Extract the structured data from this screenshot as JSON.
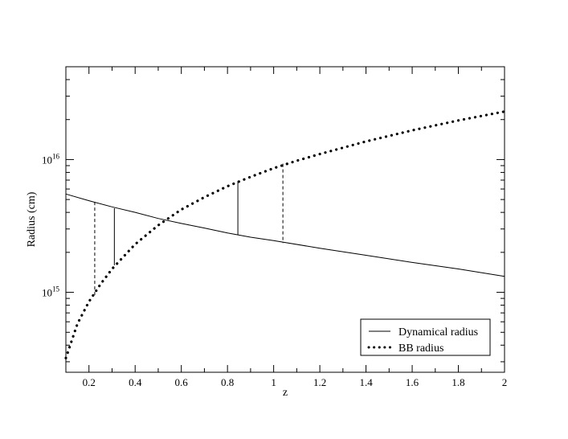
{
  "chart_data": {
    "type": "line",
    "xlabel": "z",
    "ylabel": "Radius (cm)",
    "xlim": [
      0.1,
      2.0
    ],
    "ylim": [
      250000000000000.0,
      5e+16
    ],
    "yscale": "log",
    "x_ticks": [
      0.2,
      0.4,
      0.6,
      0.8,
      1.0,
      1.2,
      1.4,
      1.6,
      1.8,
      2.0
    ],
    "x_tick_labels": [
      "0.2",
      "0.4",
      "0.6",
      "0.8",
      "1",
      "1.2",
      "1.4",
      "1.6",
      "1.8",
      "2"
    ],
    "y_ticks": [
      {
        "value": 1000000000000000.0,
        "base": "10",
        "exponent": "15"
      },
      {
        "value": 1e+16,
        "base": "10",
        "exponent": "16"
      }
    ],
    "grid": false,
    "legend_position": "bottom-right",
    "series": [
      {
        "name": "Dynamical radius",
        "style": "solid",
        "x": [
          0.1,
          0.2,
          0.3,
          0.4,
          0.5,
          0.6,
          0.7,
          0.8,
          0.9,
          1.0,
          1.2,
          1.4,
          1.6,
          1.8,
          2.0
        ],
        "y": [
          5500000000000000.0,
          4900000000000000.0,
          4400000000000000.0,
          4000000000000000.0,
          3600000000000000.0,
          3300000000000000.0,
          3050000000000000.0,
          2800000000000000.0,
          2600000000000000.0,
          2450000000000000.0,
          2150000000000000.0,
          1900000000000000.0,
          1680000000000000.0,
          1500000000000000.0,
          1320000000000000.0
        ]
      },
      {
        "name": "BB radius",
        "style": "dotted",
        "x": [
          0.1,
          0.15,
          0.2,
          0.25,
          0.3,
          0.4,
          0.5,
          0.6,
          0.7,
          0.8,
          0.9,
          1.0,
          1.1,
          1.2,
          1.4,
          1.6,
          1.8,
          2.0
        ],
        "y": [
          320000000000000.0,
          580000000000000.0,
          850000000000000.0,
          1150000000000000.0,
          1500000000000000.0,
          2300000000000000.0,
          3200000000000000.0,
          4200000000000000.0,
          5200000000000000.0,
          6300000000000000.0,
          7400000000000000.0,
          8600000000000000.0,
          9800000000000000.0,
          1.1e+16,
          1.37e+16,
          1.66e+16,
          1.97e+16,
          2.3e+16
        ]
      }
    ],
    "vertical_markers": [
      {
        "x": 0.225,
        "y_top": 4800000000000000.0,
        "y_bottom": 950000000000000.0,
        "style": "dashed"
      },
      {
        "x": 0.31,
        "y_top": 4300000000000000.0,
        "y_bottom": 1600000000000000.0,
        "style": "solid"
      },
      {
        "x": 0.845,
        "y_top": 6900000000000000.0,
        "y_bottom": 2700000000000000.0,
        "style": "solid"
      },
      {
        "x": 1.04,
        "y_top": 9300000000000000.0,
        "y_bottom": 2350000000000000.0,
        "style": "dashed"
      }
    ]
  }
}
